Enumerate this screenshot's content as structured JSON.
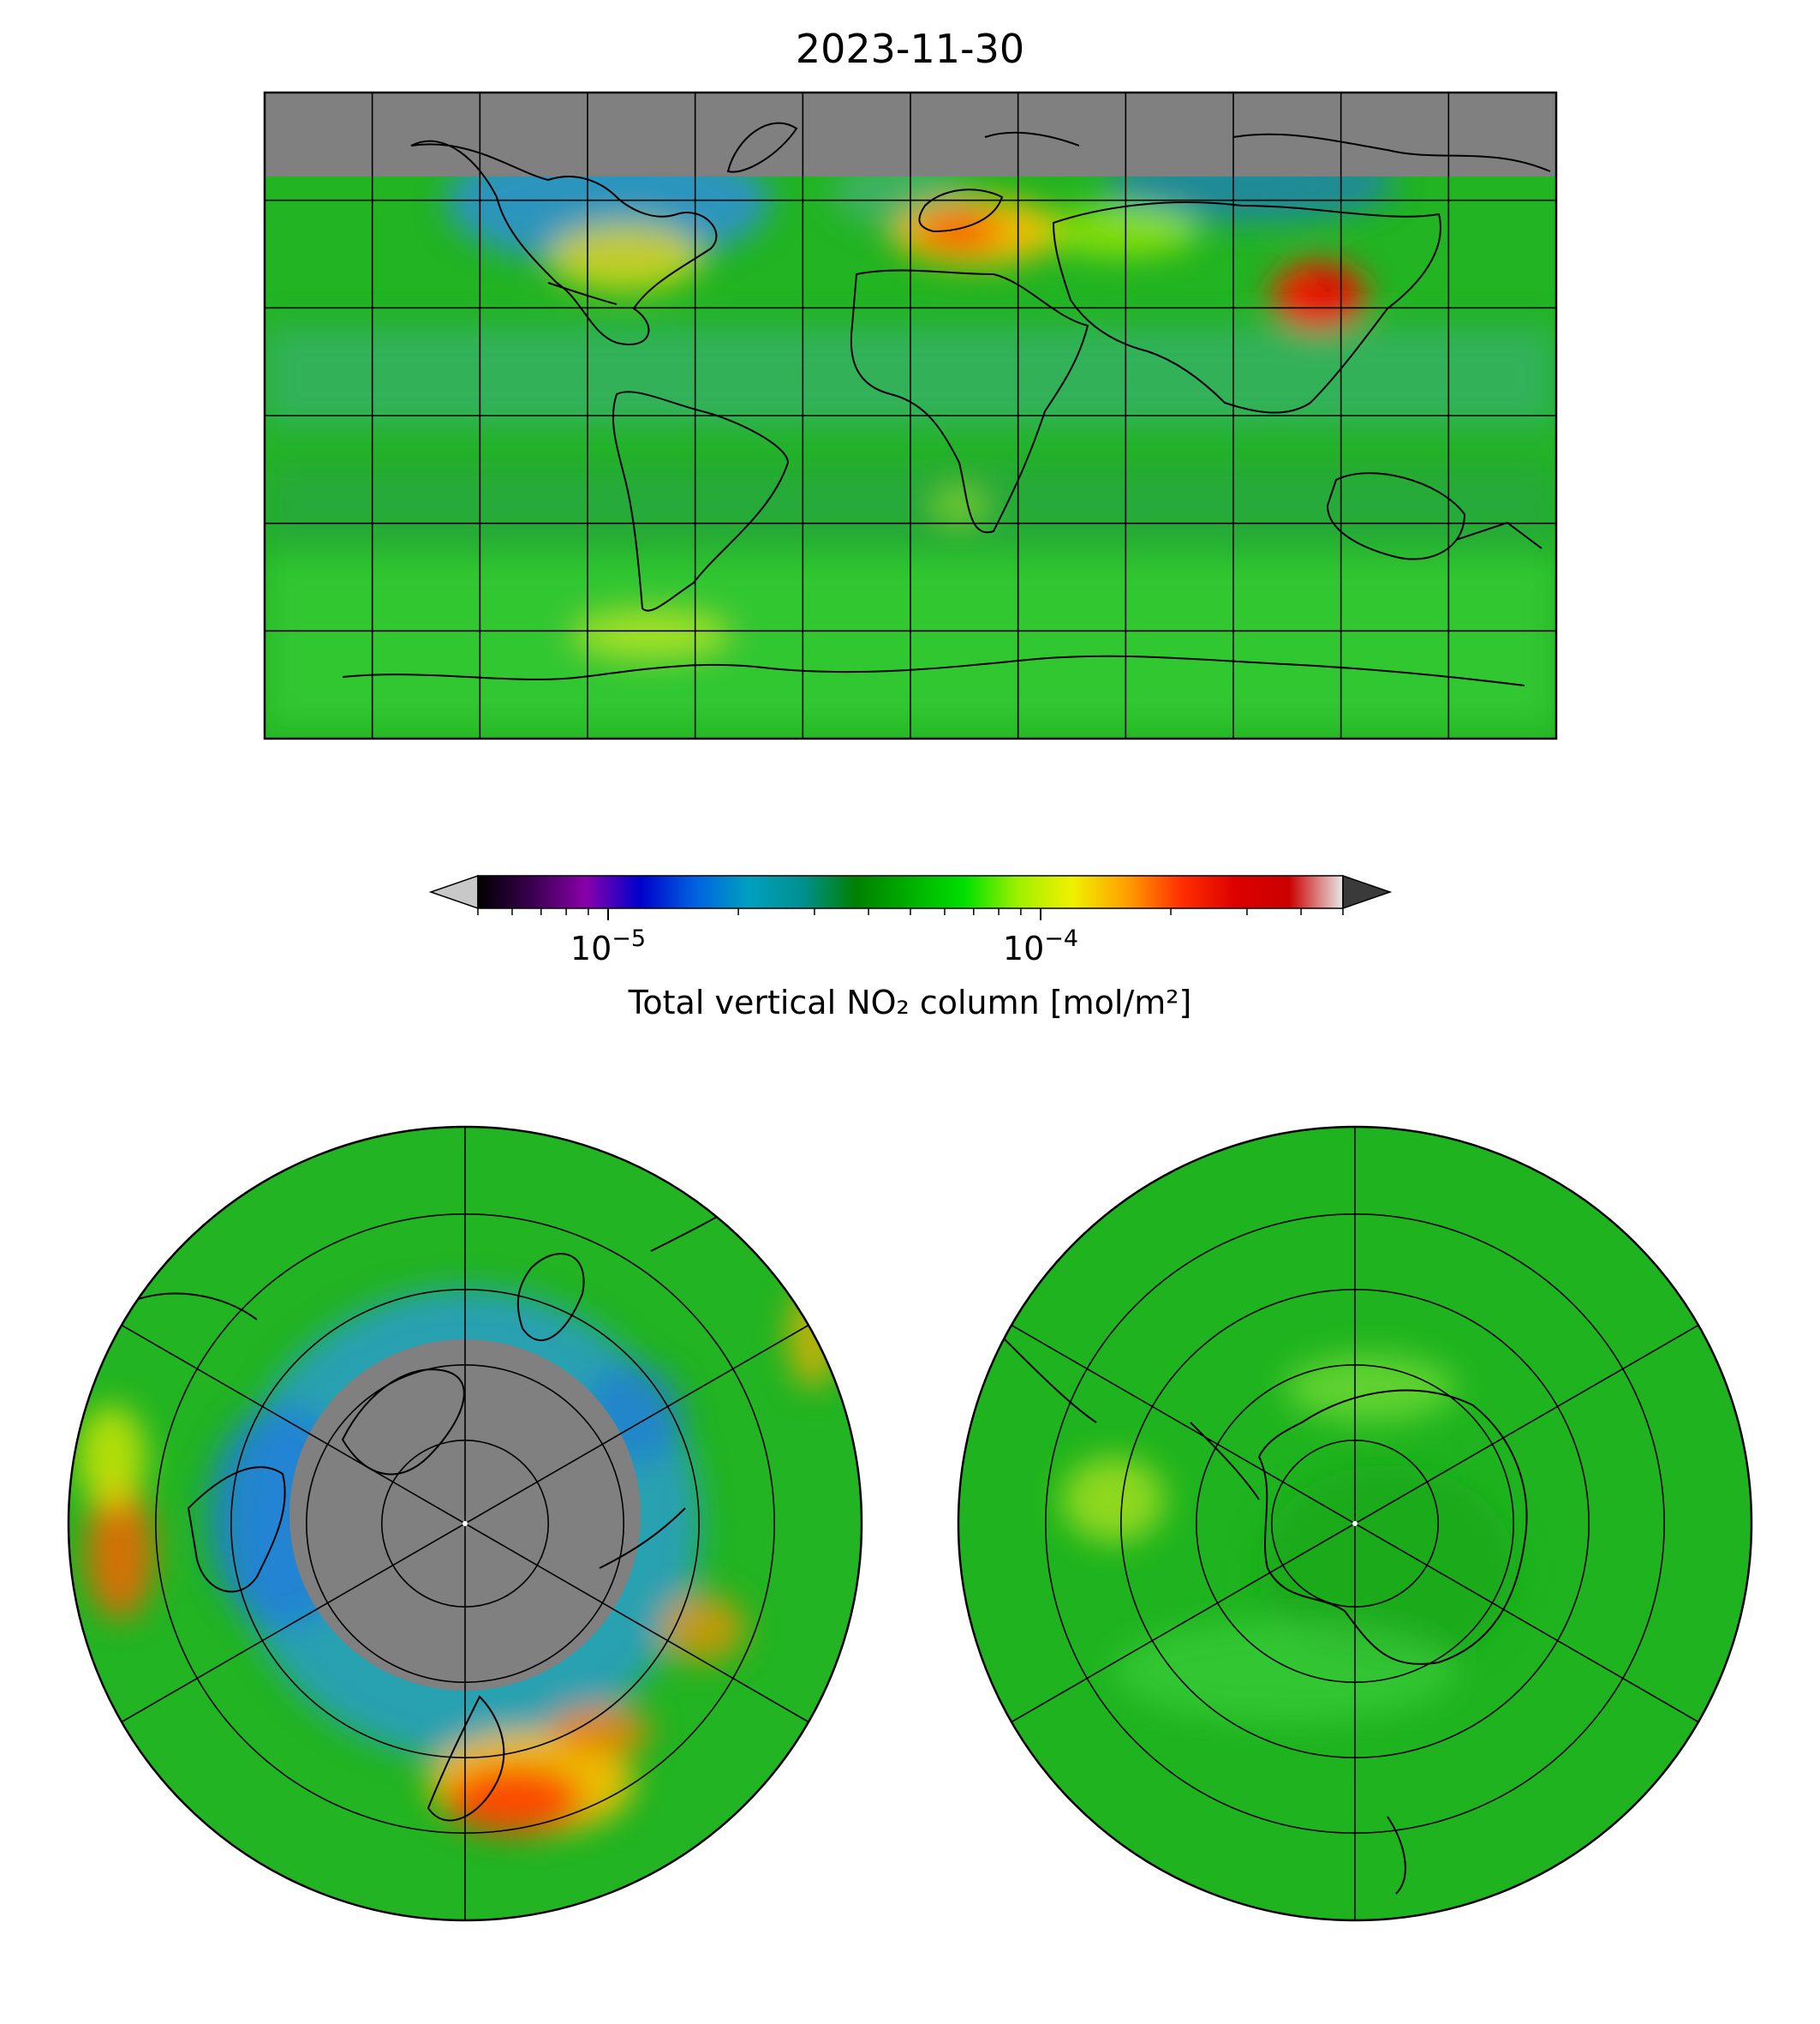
{
  "figure": {
    "title": "2023-11-30",
    "colorbar_label": "Total vertical NO₂ column [mol/m²]",
    "colorbar_scale": "log",
    "colorbar_range": [
      5e-06,
      0.0005
    ],
    "colorbar_ticks": [
      {
        "value": 1e-05,
        "base": "10",
        "exp": "−5"
      },
      {
        "value": 0.0001,
        "base": "10",
        "exp": "−4"
      }
    ],
    "colorbar_extend": "both",
    "colorbar_under_color": "#c8c8c8",
    "colorbar_over_color": "#3a3a3a",
    "colormap": [
      "#000000",
      "#3a0050",
      "#8800aa",
      "#0000cc",
      "#0060e0",
      "#00a0c0",
      "#009090",
      "#008000",
      "#00b000",
      "#00e000",
      "#a0f000",
      "#f0f000",
      "#ffa000",
      "#ff3000",
      "#dd0000",
      "#cc0000",
      "#e8e8e8"
    ],
    "no_data_color": "#808080",
    "base_color": "#22b422"
  },
  "maps": [
    {
      "name": "global-equirectangular",
      "projection": "PlateCarree",
      "gridlines": {
        "lon_step_deg": 30,
        "lat_step_deg": 30
      }
    },
    {
      "name": "north-polar",
      "projection": "NorthPolarStereo"
    },
    {
      "name": "south-polar",
      "projection": "SouthPolarStereo"
    }
  ]
}
